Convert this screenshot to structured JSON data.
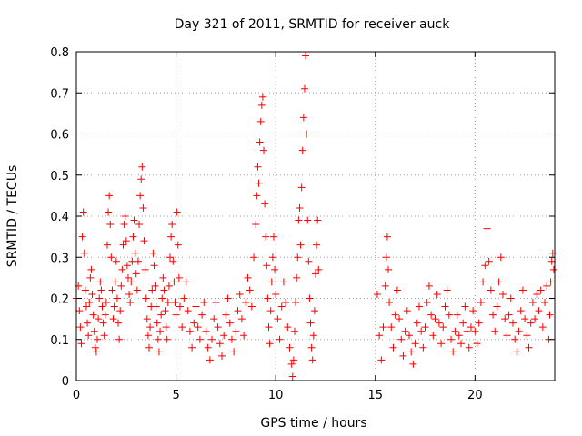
{
  "chart_data": {
    "type": "scatter",
    "title": "Day 321 of 2011, SRMTID for receiver auck",
    "xlabel": "GPS time / hours",
    "ylabel": "SRMTID / TECUs",
    "xlim": [
      0,
      24
    ],
    "ylim": [
      0,
      0.8
    ],
    "x_ticks": [
      0,
      5,
      10,
      15,
      20
    ],
    "x_tick_labels": [
      "0",
      "5",
      "10",
      "15",
      "20"
    ],
    "y_ticks": [
      0,
      0.1,
      0.2,
      0.3,
      0.4,
      0.5,
      0.6,
      0.7,
      0.8
    ],
    "y_tick_labels": [
      "0",
      "0.1",
      "0.2",
      "0.3",
      "0.4",
      "0.5",
      "0.6",
      "0.7",
      "0.8"
    ],
    "grid": true,
    "marker": "plus",
    "color": "#ff0000",
    "points": [
      [
        0.0,
        0.2
      ],
      [
        0.1,
        0.23
      ],
      [
        0.15,
        0.17
      ],
      [
        0.2,
        0.13
      ],
      [
        0.25,
        0.09
      ],
      [
        0.3,
        0.35
      ],
      [
        0.35,
        0.41
      ],
      [
        0.4,
        0.31
      ],
      [
        0.45,
        0.22
      ],
      [
        0.5,
        0.18
      ],
      [
        0.55,
        0.14
      ],
      [
        0.6,
        0.11
      ],
      [
        0.65,
        0.19
      ],
      [
        0.7,
        0.25
      ],
      [
        0.75,
        0.27
      ],
      [
        0.8,
        0.21
      ],
      [
        0.85,
        0.16
      ],
      [
        0.9,
        0.12
      ],
      [
        0.95,
        0.08
      ],
      [
        1.0,
        0.07
      ],
      [
        1.05,
        0.1
      ],
      [
        1.1,
        0.15
      ],
      [
        1.15,
        0.2
      ],
      [
        1.2,
        0.24
      ],
      [
        1.25,
        0.22
      ],
      [
        1.3,
        0.18
      ],
      [
        1.35,
        0.14
      ],
      [
        1.4,
        0.11
      ],
      [
        1.45,
        0.16
      ],
      [
        1.5,
        0.19
      ],
      [
        1.55,
        0.33
      ],
      [
        1.6,
        0.41
      ],
      [
        1.65,
        0.45
      ],
      [
        1.7,
        0.38
      ],
      [
        1.75,
        0.3
      ],
      [
        1.8,
        0.22
      ],
      [
        1.85,
        0.15
      ],
      [
        1.9,
        0.18
      ],
      [
        1.95,
        0.24
      ],
      [
        2.0,
        0.29
      ],
      [
        2.05,
        0.2
      ],
      [
        2.1,
        0.14
      ],
      [
        2.15,
        0.1
      ],
      [
        2.2,
        0.17
      ],
      [
        2.25,
        0.23
      ],
      [
        2.3,
        0.27
      ],
      [
        2.35,
        0.33
      ],
      [
        2.4,
        0.38
      ],
      [
        2.45,
        0.4
      ],
      [
        2.5,
        0.34
      ],
      [
        2.55,
        0.28
      ],
      [
        2.6,
        0.25
      ],
      [
        2.65,
        0.21
      ],
      [
        2.7,
        0.19
      ],
      [
        2.75,
        0.24
      ],
      [
        2.8,
        0.29
      ],
      [
        2.85,
        0.35
      ],
      [
        2.9,
        0.39
      ],
      [
        2.95,
        0.31
      ],
      [
        3.0,
        0.26
      ],
      [
        3.05,
        0.22
      ],
      [
        3.1,
        0.29
      ],
      [
        3.15,
        0.38
      ],
      [
        3.2,
        0.45
      ],
      [
        3.25,
        0.49
      ],
      [
        3.3,
        0.52
      ],
      [
        3.35,
        0.42
      ],
      [
        3.4,
        0.34
      ],
      [
        3.45,
        0.27
      ],
      [
        3.5,
        0.2
      ],
      [
        3.55,
        0.15
      ],
      [
        3.6,
        0.11
      ],
      [
        3.65,
        0.08
      ],
      [
        3.7,
        0.13
      ],
      [
        3.75,
        0.18
      ],
      [
        3.8,
        0.22
      ],
      [
        3.85,
        0.31
      ],
      [
        3.9,
        0.28
      ],
      [
        3.95,
        0.23
      ],
      [
        4.0,
        0.18
      ],
      [
        4.05,
        0.14
      ],
      [
        4.1,
        0.1
      ],
      [
        4.15,
        0.07
      ],
      [
        4.2,
        0.12
      ],
      [
        4.25,
        0.16
      ],
      [
        4.3,
        0.2
      ],
      [
        4.35,
        0.25
      ],
      [
        4.4,
        0.22
      ],
      [
        4.45,
        0.17
      ],
      [
        4.5,
        0.13
      ],
      [
        4.55,
        0.1
      ],
      [
        4.6,
        0.19
      ],
      [
        4.65,
        0.23
      ],
      [
        4.7,
        0.3
      ],
      [
        4.75,
        0.35
      ],
      [
        4.8,
        0.38
      ],
      [
        4.85,
        0.29
      ],
      [
        4.9,
        0.24
      ],
      [
        4.95,
        0.19
      ],
      [
        5.0,
        0.16
      ],
      [
        5.05,
        0.41
      ],
      [
        5.1,
        0.33
      ],
      [
        5.15,
        0.25
      ],
      [
        5.2,
        0.18
      ],
      [
        5.3,
        0.13
      ],
      [
        5.4,
        0.2
      ],
      [
        5.5,
        0.24
      ],
      [
        5.6,
        0.17
      ],
      [
        5.7,
        0.12
      ],
      [
        5.8,
        0.08
      ],
      [
        5.9,
        0.14
      ],
      [
        6.0,
        0.18
      ],
      [
        6.1,
        0.13
      ],
      [
        6.2,
        0.1
      ],
      [
        6.3,
        0.16
      ],
      [
        6.4,
        0.19
      ],
      [
        6.5,
        0.12
      ],
      [
        6.6,
        0.08
      ],
      [
        6.7,
        0.05
      ],
      [
        6.8,
        0.1
      ],
      [
        6.9,
        0.15
      ],
      [
        7.0,
        0.19
      ],
      [
        7.1,
        0.13
      ],
      [
        7.2,
        0.09
      ],
      [
        7.3,
        0.06
      ],
      [
        7.4,
        0.11
      ],
      [
        7.5,
        0.16
      ],
      [
        7.6,
        0.2
      ],
      [
        7.7,
        0.14
      ],
      [
        7.8,
        0.1
      ],
      [
        7.9,
        0.07
      ],
      [
        8.0,
        0.12
      ],
      [
        8.1,
        0.17
      ],
      [
        8.2,
        0.21
      ],
      [
        8.3,
        0.15
      ],
      [
        8.4,
        0.11
      ],
      [
        8.5,
        0.19
      ],
      [
        8.6,
        0.25
      ],
      [
        8.7,
        0.22
      ],
      [
        8.8,
        0.18
      ],
      [
        8.9,
        0.3
      ],
      [
        9.0,
        0.38
      ],
      [
        9.05,
        0.45
      ],
      [
        9.1,
        0.52
      ],
      [
        9.15,
        0.48
      ],
      [
        9.2,
        0.58
      ],
      [
        9.25,
        0.63
      ],
      [
        9.3,
        0.67
      ],
      [
        9.35,
        0.69
      ],
      [
        9.4,
        0.56
      ],
      [
        9.45,
        0.43
      ],
      [
        9.5,
        0.35
      ],
      [
        9.55,
        0.28
      ],
      [
        9.6,
        0.2
      ],
      [
        9.65,
        0.13
      ],
      [
        9.7,
        0.09
      ],
      [
        9.75,
        0.17
      ],
      [
        9.8,
        0.24
      ],
      [
        9.85,
        0.3
      ],
      [
        9.9,
        0.35
      ],
      [
        9.95,
        0.27
      ],
      [
        10.0,
        0.21
      ],
      [
        10.1,
        0.15
      ],
      [
        10.2,
        0.1
      ],
      [
        10.3,
        0.18
      ],
      [
        10.4,
        0.24
      ],
      [
        10.5,
        0.19
      ],
      [
        10.6,
        0.13
      ],
      [
        10.7,
        0.08
      ],
      [
        10.8,
        0.04
      ],
      [
        10.85,
        0.01
      ],
      [
        10.9,
        0.05
      ],
      [
        10.95,
        0.12
      ],
      [
        11.0,
        0.19
      ],
      [
        11.05,
        0.25
      ],
      [
        11.1,
        0.3
      ],
      [
        11.15,
        0.39
      ],
      [
        11.2,
        0.42
      ],
      [
        11.25,
        0.33
      ],
      [
        11.3,
        0.47
      ],
      [
        11.35,
        0.56
      ],
      [
        11.4,
        0.64
      ],
      [
        11.45,
        0.71
      ],
      [
        11.5,
        0.79
      ],
      [
        11.55,
        0.6
      ],
      [
        11.6,
        0.39
      ],
      [
        11.65,
        0.29
      ],
      [
        11.7,
        0.2
      ],
      [
        11.75,
        0.14
      ],
      [
        11.8,
        0.08
      ],
      [
        11.85,
        0.05
      ],
      [
        11.9,
        0.11
      ],
      [
        11.95,
        0.17
      ],
      [
        12.0,
        0.26
      ],
      [
        12.05,
        0.33
      ],
      [
        12.1,
        0.39
      ],
      [
        12.15,
        0.27
      ],
      [
        15.1,
        0.21
      ],
      [
        15.2,
        0.11
      ],
      [
        15.3,
        0.05
      ],
      [
        15.4,
        0.13
      ],
      [
        15.5,
        0.23
      ],
      [
        15.55,
        0.3
      ],
      [
        15.6,
        0.35
      ],
      [
        15.65,
        0.27
      ],
      [
        15.7,
        0.19
      ],
      [
        15.8,
        0.13
      ],
      [
        15.9,
        0.08
      ],
      [
        16.0,
        0.16
      ],
      [
        16.1,
        0.22
      ],
      [
        16.2,
        0.15
      ],
      [
        16.3,
        0.1
      ],
      [
        16.4,
        0.06
      ],
      [
        16.5,
        0.12
      ],
      [
        16.6,
        0.17
      ],
      [
        16.7,
        0.11
      ],
      [
        16.8,
        0.07
      ],
      [
        16.9,
        0.04
      ],
      [
        17.0,
        0.09
      ],
      [
        17.1,
        0.14
      ],
      [
        17.2,
        0.18
      ],
      [
        17.3,
        0.12
      ],
      [
        17.4,
        0.08
      ],
      [
        17.5,
        0.13
      ],
      [
        17.6,
        0.19
      ],
      [
        17.7,
        0.23
      ],
      [
        17.8,
        0.16
      ],
      [
        17.9,
        0.11
      ],
      [
        18.0,
        0.15
      ],
      [
        18.1,
        0.21
      ],
      [
        18.2,
        0.14
      ],
      [
        18.3,
        0.09
      ],
      [
        18.4,
        0.13
      ],
      [
        18.5,
        0.18
      ],
      [
        18.6,
        0.22
      ],
      [
        18.7,
        0.16
      ],
      [
        18.8,
        0.1
      ],
      [
        18.9,
        0.07
      ],
      [
        19.0,
        0.12
      ],
      [
        19.1,
        0.16
      ],
      [
        19.2,
        0.11
      ],
      [
        19.3,
        0.09
      ],
      [
        19.4,
        0.14
      ],
      [
        19.5,
        0.18
      ],
      [
        19.6,
        0.12
      ],
      [
        19.7,
        0.08
      ],
      [
        19.8,
        0.13
      ],
      [
        19.9,
        0.17
      ],
      [
        20.0,
        0.12
      ],
      [
        20.1,
        0.09
      ],
      [
        20.2,
        0.14
      ],
      [
        20.3,
        0.19
      ],
      [
        20.4,
        0.24
      ],
      [
        20.5,
        0.28
      ],
      [
        20.6,
        0.37
      ],
      [
        20.7,
        0.29
      ],
      [
        20.8,
        0.22
      ],
      [
        20.9,
        0.16
      ],
      [
        21.0,
        0.12
      ],
      [
        21.1,
        0.18
      ],
      [
        21.2,
        0.24
      ],
      [
        21.3,
        0.3
      ],
      [
        21.4,
        0.21
      ],
      [
        21.5,
        0.15
      ],
      [
        21.6,
        0.11
      ],
      [
        21.7,
        0.16
      ],
      [
        21.8,
        0.2
      ],
      [
        21.9,
        0.14
      ],
      [
        22.0,
        0.1
      ],
      [
        22.1,
        0.07
      ],
      [
        22.2,
        0.12
      ],
      [
        22.3,
        0.17
      ],
      [
        22.4,
        0.22
      ],
      [
        22.5,
        0.15
      ],
      [
        22.6,
        0.11
      ],
      [
        22.7,
        0.08
      ],
      [
        22.8,
        0.14
      ],
      [
        22.9,
        0.19
      ],
      [
        23.0,
        0.15
      ],
      [
        23.1,
        0.21
      ],
      [
        23.2,
        0.17
      ],
      [
        23.3,
        0.22
      ],
      [
        23.4,
        0.13
      ],
      [
        23.5,
        0.19
      ],
      [
        23.6,
        0.23
      ],
      [
        23.7,
        0.1
      ],
      [
        23.75,
        0.16
      ],
      [
        23.8,
        0.24
      ],
      [
        23.85,
        0.29
      ],
      [
        23.9,
        0.31
      ],
      [
        23.95,
        0.27
      ]
    ]
  }
}
